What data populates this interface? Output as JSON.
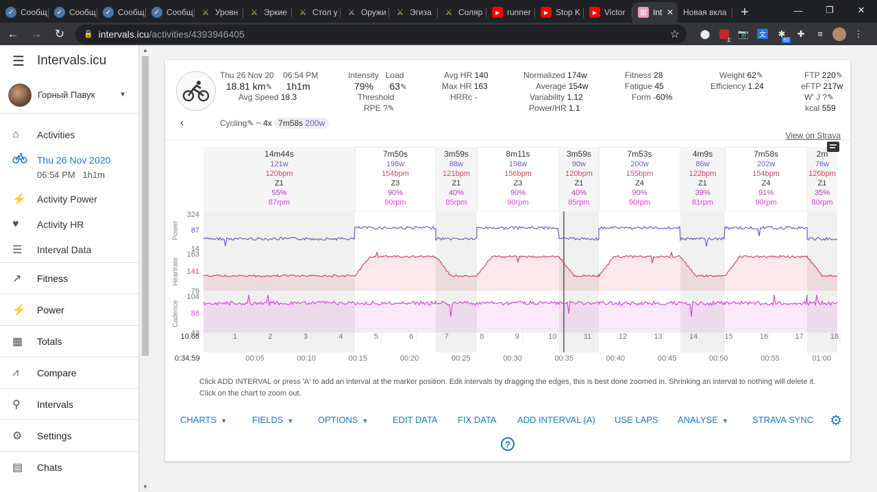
{
  "browser": {
    "tabs": [
      {
        "label": "Сообщ",
        "icon": "vk-icon",
        "color": "#4a76a8"
      },
      {
        "label": "Сообщ",
        "icon": "vk-icon",
        "color": "#4a76a8"
      },
      {
        "label": "Сообщ",
        "icon": "vk-icon",
        "color": "#4a76a8"
      },
      {
        "label": "Сообщ",
        "icon": "vk-icon",
        "color": "#4a76a8"
      },
      {
        "label": "Уровн",
        "icon": "game-icon",
        "color": "#d9b95b"
      },
      {
        "label": "Эркие",
        "icon": "game-icon",
        "color": "#d9b95b"
      },
      {
        "label": "Стол у",
        "icon": "game-icon",
        "color": "#d9b95b"
      },
      {
        "label": "Оружи",
        "icon": "game-icon",
        "color": "#d9b95b"
      },
      {
        "label": "Эгиза",
        "icon": "game-icon",
        "color": "#d9b95b"
      },
      {
        "label": "Соляр",
        "icon": "game-icon",
        "color": "#d9b95b"
      },
      {
        "label": "runner",
        "icon": "youtube-icon",
        "color": "#ff0000"
      },
      {
        "label": "Stop K",
        "icon": "youtube-icon",
        "color": "#ff0000"
      },
      {
        "label": "Victor",
        "icon": "youtube-icon",
        "color": "#ff0000"
      }
    ],
    "active_tab": {
      "label": "Int",
      "close": "✕"
    },
    "new_tab_label": "Новая вкла",
    "url_host": "intervals.icu",
    "url_path": "/activities/4393946405",
    "ext_badge_1": "1",
    "ext_badge_2": "60"
  },
  "app": {
    "brand": "Intervals.icu",
    "athlete": "Горный Павук",
    "nav": {
      "activities": "Activities",
      "current_date": "Thu 26 Nov 2020",
      "current_time": "06:54 PM",
      "current_duration": "1h1m",
      "activity_power": "Activity Power",
      "activity_hr": "Activity HR",
      "interval_data": "Interval Data",
      "fitness": "Fitness",
      "power": "Power",
      "totals": "Totals",
      "compare": "Compare",
      "intervals": "Intervals",
      "settings": "Settings",
      "chats": "Chats"
    }
  },
  "summary": {
    "date": "Thu 26 Nov 20",
    "time": "06:54 PM",
    "distance": "18.81 km",
    "duration": "1h1m",
    "avg_speed_label": "Avg Speed",
    "avg_speed": "18.3",
    "intensity_label": "Intensity",
    "load_label": "Load",
    "intensity": "79%",
    "load": "63",
    "threshold": "Threshold",
    "rpe": "RPE ?",
    "avg_hr_label": "Avg HR",
    "avg_hr": "140",
    "max_hr_label": "Max HR",
    "max_hr": "163",
    "hrrc": "HRRc -",
    "normalized_label": "Normalized",
    "normalized": "174w",
    "average_label": "Average",
    "average": "154w",
    "variability_label": "Variability",
    "variability": "1.12",
    "power_hr_label": "Power/HR",
    "power_hr": "1.1",
    "fitness_label": "Fitness",
    "fitness": "28",
    "fatigue_label": "Fatigue",
    "fatigue": "45",
    "form_label": "Form",
    "form": "-60%",
    "weight_label": "Weight",
    "weight": "62",
    "efficiency_label": "Efficiency",
    "efficiency": "1.24",
    "ftp_label": "FTP",
    "ftp": "220",
    "eftp_label": "eFTP",
    "eftp": "217w",
    "wj_label": "W' J ?",
    "kcal_label": "kcal",
    "kcal": "559",
    "type": "Cycling",
    "tilde": "~",
    "interval_summary_prefix": "4x",
    "interval_summary_time": "7m58s",
    "interval_summary_power": "200w",
    "view_on_strava": "View on Strava"
  },
  "chart_data": {
    "type": "line",
    "intervals": [
      {
        "time": "14m44s",
        "power": "121w",
        "hr": "120bpm",
        "zone": "Z1",
        "pct": "55%",
        "cadence": "87rpm",
        "work": false
      },
      {
        "time": "7m50s",
        "power": "198w",
        "hr": "154bpm",
        "zone": "Z3",
        "pct": "90%",
        "cadence": "90rpm",
        "work": true
      },
      {
        "time": "3m59s",
        "power": "88w",
        "hr": "121bpm",
        "zone": "Z1",
        "pct": "40%",
        "cadence": "85rpm",
        "work": false
      },
      {
        "time": "8m11s",
        "power": "198w",
        "hr": "156bpm",
        "zone": "Z3",
        "pct": "90%",
        "cadence": "90rpm",
        "work": true
      },
      {
        "time": "3m59s",
        "power": "90w",
        "hr": "120bpm",
        "zone": "Z1",
        "pct": "40%",
        "cadence": "85rpm",
        "work": false
      },
      {
        "time": "7m53s",
        "power": "200w",
        "hr": "155bpm",
        "zone": "Z4",
        "pct": "90%",
        "cadence": "90rpm",
        "work": true
      },
      {
        "time": "4m9s",
        "power": "86w",
        "hr": "122bpm",
        "zone": "Z1",
        "pct": "39%",
        "cadence": "81rpm",
        "work": false
      },
      {
        "time": "7m58s",
        "power": "202w",
        "hr": "154bpm",
        "zone": "Z4",
        "pct": "91%",
        "cadence": "90rpm",
        "work": true
      },
      {
        "time": "2m",
        "power": "76w",
        "hr": "126bpm",
        "zone": "Z1",
        "pct": "35%",
        "cadence": "80rpm",
        "work": false
      }
    ],
    "panels": [
      {
        "name": "Power",
        "ticks": [
          "324",
          "87",
          "14"
        ],
        "color": "#6a5acd"
      },
      {
        "name": "Heartrate",
        "ticks": [
          "163",
          "141",
          "79"
        ],
        "color": "#d9455f"
      },
      {
        "name": "Cadence",
        "ticks": [
          "104",
          "88",
          "43"
        ],
        "color": "#e040e0"
      }
    ],
    "km_start": "10.66",
    "km_marks": [
      "1",
      "2",
      "3",
      "4",
      "5",
      "6",
      "7",
      "8",
      "9",
      "10",
      "11",
      "12",
      "13",
      "14",
      "15",
      "16",
      "17",
      "18"
    ],
    "cursor_time": "0:34:59",
    "x_ticks": [
      "00:05",
      "00:10",
      "00:15",
      "00:20",
      "00:25",
      "00:30",
      "00:35",
      "00:40",
      "00:45",
      "00:50",
      "00:55",
      "01:00"
    ]
  },
  "help": {
    "line1": "Click ADD INTERVAL or press 'A' to add an interval at the marker position. Edit intervals by dragging the edges, this is best done zoomed in. Shrinking an interval to nothing will delete it.",
    "line2": "Click on the chart to zoom out."
  },
  "toolbar": {
    "charts": "CHARTS",
    "fields": "FIELDS",
    "options": "OPTIONS",
    "edit_data": "EDIT DATA",
    "fix_data": "FIX DATA",
    "add_interval": "ADD INTERVAL (A)",
    "use_laps": "USE LAPS",
    "analyse": "ANALYSE",
    "strava_sync": "STRAVA SYNC",
    "help": "?"
  }
}
